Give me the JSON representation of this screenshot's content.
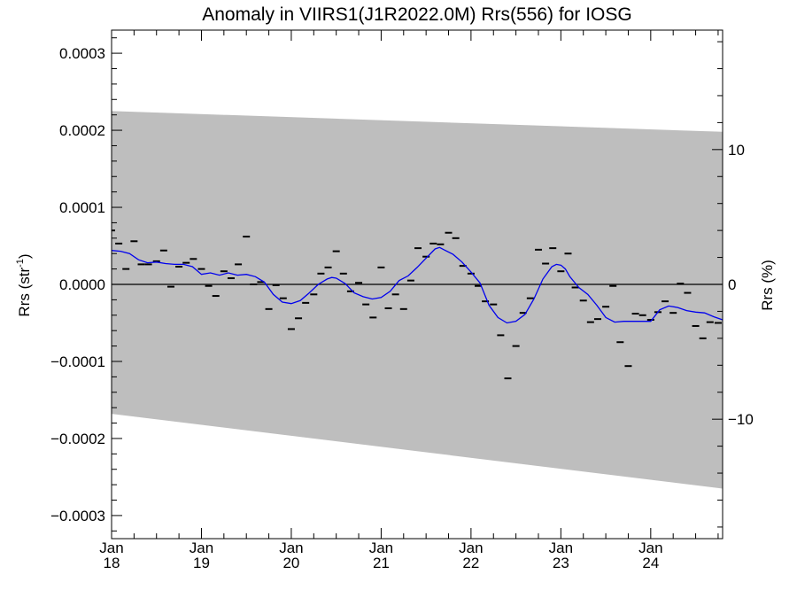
{
  "chart_data": {
    "type": "line",
    "title": "Anomaly in VIIRS1(J1R2022.0M) Rrs(556) for IOSG",
    "ylabel_left": "Rrs (str",
    "ylabel_left_sup": "-1",
    "ylabel_left_close": ")",
    "ylabel_right": "Rrs (%)",
    "xlim": [
      2018.0,
      2024.8
    ],
    "ylim": [
      -0.00033,
      0.00033
    ],
    "y2lim": [
      -18.86,
      18.86
    ],
    "x_ticks": [
      {
        "value": 2018,
        "month": "Jan",
        "year": "18"
      },
      {
        "value": 2019,
        "month": "Jan",
        "year": "19"
      },
      {
        "value": 2020,
        "month": "Jan",
        "year": "20"
      },
      {
        "value": 2021,
        "month": "Jan",
        "year": "21"
      },
      {
        "value": 2022,
        "month": "Jan",
        "year": "22"
      },
      {
        "value": 2023,
        "month": "Jan",
        "year": "23"
      },
      {
        "value": 2024,
        "month": "Jan",
        "year": "24"
      }
    ],
    "y_ticks_left": [
      {
        "value": 0.0003,
        "label": "0.0003"
      },
      {
        "value": 0.0002,
        "label": "0.0002"
      },
      {
        "value": 0.0001,
        "label": "0.0001"
      },
      {
        "value": 0.0,
        "label": "0.0000"
      },
      {
        "value": -0.0001,
        "label": "−0.0001"
      },
      {
        "value": -0.0002,
        "label": "−0.0002"
      },
      {
        "value": -0.0003,
        "label": "−0.0003"
      }
    ],
    "y_ticks_right": [
      {
        "value": 10,
        "label": "10"
      },
      {
        "value": 0,
        "label": "0"
      },
      {
        "value": -10,
        "label": "−10"
      }
    ],
    "band": {
      "upper": [
        [
          2018.0,
          0.000225
        ],
        [
          2024.8,
          0.000198
        ]
      ],
      "lower": [
        [
          2018.0,
          -0.000168
        ],
        [
          2024.8,
          -0.000265
        ]
      ],
      "color": "#bebebe"
    },
    "zero_line": 0.0,
    "monthly_points": [
      [
        2018.0,
        7e-05
      ],
      [
        2018.08,
        5.3e-05
      ],
      [
        2018.16,
        2e-05
      ],
      [
        2018.25,
        5.6e-05
      ],
      [
        2018.33,
        2.6e-05
      ],
      [
        2018.41,
        2.6e-05
      ],
      [
        2018.5,
        3e-05
      ],
      [
        2018.58,
        4.4e-05
      ],
      [
        2018.66,
        -3e-06
      ],
      [
        2018.75,
        2.3e-05
      ],
      [
        2018.83,
        2.8e-05
      ],
      [
        2018.91,
        3.3e-05
      ],
      [
        2019.0,
        2e-05
      ],
      [
        2019.08,
        -2e-06
      ],
      [
        2019.16,
        -1.5e-05
      ],
      [
        2019.25,
        1.7e-05
      ],
      [
        2019.33,
        8e-06
      ],
      [
        2019.41,
        2.6e-05
      ],
      [
        2019.5,
        6.2e-05
      ],
      [
        2019.58,
        0.0
      ],
      [
        2019.66,
        3e-06
      ],
      [
        2019.75,
        -3.2e-05
      ],
      [
        2019.83,
        -1e-06
      ],
      [
        2019.91,
        -1.8e-05
      ],
      [
        2020.0,
        -5.8e-05
      ],
      [
        2020.08,
        -4.4e-05
      ],
      [
        2020.16,
        -2.4e-05
      ],
      [
        2020.25,
        -1.3e-05
      ],
      [
        2020.33,
        1.4e-05
      ],
      [
        2020.41,
        2.2e-05
      ],
      [
        2020.5,
        4.3e-05
      ],
      [
        2020.58,
        1.4e-05
      ],
      [
        2020.66,
        -9e-06
      ],
      [
        2020.75,
        2e-06
      ],
      [
        2020.83,
        -2.6e-05
      ],
      [
        2020.91,
        -4.3e-05
      ],
      [
        2021.0,
        2.2e-05
      ],
      [
        2021.08,
        -3.1e-05
      ],
      [
        2021.16,
        -1.3e-05
      ],
      [
        2021.25,
        -3.2e-05
      ],
      [
        2021.33,
        5e-06
      ],
      [
        2021.41,
        4.7e-05
      ],
      [
        2021.5,
        3.6e-05
      ],
      [
        2021.58,
        5.3e-05
      ],
      [
        2021.66,
        5.2e-05
      ],
      [
        2021.75,
        6.7e-05
      ],
      [
        2021.83,
        6e-05
      ],
      [
        2021.91,
        2.4e-05
      ],
      [
        2022.0,
        1.4e-05
      ],
      [
        2022.08,
        -2e-06
      ],
      [
        2022.16,
        -2.2e-05
      ],
      [
        2022.25,
        -2.6e-05
      ],
      [
        2022.33,
        -6.6e-05
      ],
      [
        2022.41,
        -0.000122
      ],
      [
        2022.5,
        -8e-05
      ],
      [
        2022.58,
        -3.7e-05
      ],
      [
        2022.66,
        -1.8e-05
      ],
      [
        2022.75,
        4.5e-05
      ],
      [
        2022.83,
        2.7e-05
      ],
      [
        2022.91,
        4.7e-05
      ],
      [
        2023.0,
        1.7e-05
      ],
      [
        2023.08,
        4e-05
      ],
      [
        2023.16,
        -4e-06
      ],
      [
        2023.25,
        -2.1e-05
      ],
      [
        2023.33,
        -4.9e-05
      ],
      [
        2023.41,
        -4.5e-05
      ],
      [
        2023.5,
        -2.9e-05
      ],
      [
        2023.58,
        -2e-06
      ],
      [
        2023.66,
        -7.5e-05
      ],
      [
        2023.75,
        -0.000106
      ],
      [
        2023.83,
        -3.8e-05
      ],
      [
        2023.91,
        -4e-05
      ],
      [
        2024.0,
        -4.6e-05
      ],
      [
        2024.08,
        -3.6e-05
      ],
      [
        2024.16,
        -2.2e-05
      ],
      [
        2024.25,
        -3.7e-05
      ],
      [
        2024.33,
        1e-06
      ],
      [
        2024.41,
        -1.1e-05
      ],
      [
        2024.5,
        -5.4e-05
      ],
      [
        2024.58,
        -7e-05
      ],
      [
        2024.66,
        -4.9e-05
      ],
      [
        2024.75,
        -5e-05
      ]
    ],
    "smoothed_series": {
      "color": "#0000ee",
      "points": [
        [
          2018.0,
          4.4e-05
        ],
        [
          2018.1,
          4.3e-05
        ],
        [
          2018.2,
          4e-05
        ],
        [
          2018.3,
          3.2e-05
        ],
        [
          2018.4,
          2.8e-05
        ],
        [
          2018.5,
          2.9e-05
        ],
        [
          2018.6,
          2.7e-05
        ],
        [
          2018.7,
          2.6e-05
        ],
        [
          2018.8,
          2.6e-05
        ],
        [
          2018.9,
          2.3e-05
        ],
        [
          2019.0,
          1.3e-05
        ],
        [
          2019.1,
          1.5e-05
        ],
        [
          2019.2,
          1.2e-05
        ],
        [
          2019.3,
          1.5e-05
        ],
        [
          2019.4,
          1.2e-05
        ],
        [
          2019.5,
          1.3e-05
        ],
        [
          2019.6,
          1e-05
        ],
        [
          2019.7,
          3e-06
        ],
        [
          2019.8,
          -1.3e-05
        ],
        [
          2019.9,
          -2.3e-05
        ],
        [
          2020.0,
          -2.5e-05
        ],
        [
          2020.1,
          -2.1e-05
        ],
        [
          2020.2,
          -1.1e-05
        ],
        [
          2020.3,
          0.0
        ],
        [
          2020.4,
          7e-06
        ],
        [
          2020.45,
          9e-06
        ],
        [
          2020.5,
          8e-06
        ],
        [
          2020.6,
          1e-06
        ],
        [
          2020.7,
          -1.1e-05
        ],
        [
          2020.8,
          -1.6e-05
        ],
        [
          2020.9,
          -1.9e-05
        ],
        [
          2021.0,
          -1.7e-05
        ],
        [
          2021.1,
          -9e-06
        ],
        [
          2021.2,
          5e-06
        ],
        [
          2021.3,
          1.1e-05
        ],
        [
          2021.4,
          2.2e-05
        ],
        [
          2021.5,
          3.4e-05
        ],
        [
          2021.6,
          4.6e-05
        ],
        [
          2021.65,
          4.8e-05
        ],
        [
          2021.7,
          4.5e-05
        ],
        [
          2021.8,
          3.9e-05
        ],
        [
          2021.9,
          2.9e-05
        ],
        [
          2022.0,
          1.6e-05
        ],
        [
          2022.1,
          2e-06
        ],
        [
          2022.2,
          -2.7e-05
        ],
        [
          2022.3,
          -4.3e-05
        ],
        [
          2022.4,
          -5e-05
        ],
        [
          2022.5,
          -4.8e-05
        ],
        [
          2022.6,
          -3.9e-05
        ],
        [
          2022.7,
          -1.9e-05
        ],
        [
          2022.8,
          7e-06
        ],
        [
          2022.9,
          2.3e-05
        ],
        [
          2022.95,
          2.6e-05
        ],
        [
          2023.0,
          2.5e-05
        ],
        [
          2023.05,
          2e-05
        ],
        [
          2023.1,
          1e-05
        ],
        [
          2023.2,
          -4e-06
        ],
        [
          2023.3,
          -1.3e-05
        ],
        [
          2023.4,
          -2.7e-05
        ],
        [
          2023.5,
          -4.3e-05
        ],
        [
          2023.6,
          -4.9e-05
        ],
        [
          2023.7,
          -4.8e-05
        ],
        [
          2023.8,
          -4.8e-05
        ],
        [
          2023.9,
          -4.8e-05
        ],
        [
          2024.0,
          -4.8e-05
        ],
        [
          2024.1,
          -3.3e-05
        ],
        [
          2024.2,
          -2.8e-05
        ],
        [
          2024.3,
          -3e-05
        ],
        [
          2024.4,
          -3.4e-05
        ],
        [
          2024.5,
          -3.6e-05
        ],
        [
          2024.6,
          -3.7e-05
        ],
        [
          2024.7,
          -4.2e-05
        ],
        [
          2024.8,
          -4.6e-05
        ]
      ]
    }
  }
}
